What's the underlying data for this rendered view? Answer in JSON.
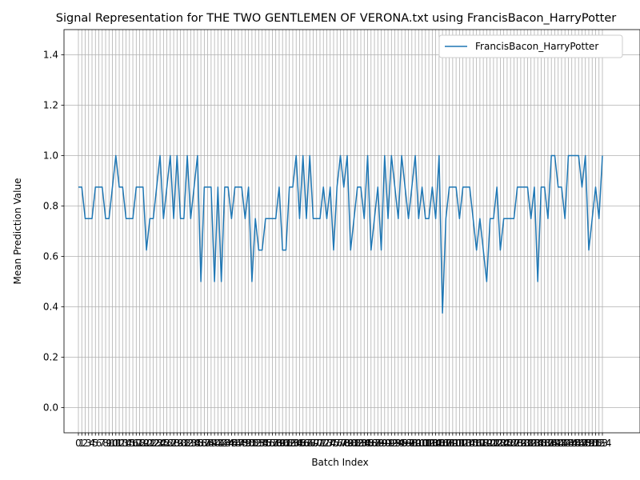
{
  "chart_data": {
    "type": "line",
    "title": "Signal Representation for THE TWO GENTLEMEN OF VERONA.txt using FrancisBacon_HarryPotter",
    "xlabel": "Batch Index",
    "ylabel": "Mean Prediction Value",
    "ylim": [
      -0.1,
      1.5
    ],
    "yticks": [
      0.0,
      0.2,
      0.4,
      0.6,
      0.8,
      1.0,
      1.2,
      1.4
    ],
    "grid": true,
    "legend_position": "upper right",
    "series": [
      {
        "name": "FrancisBacon_HarryPotter",
        "color": "#1f77b4",
        "values": [
          0.875,
          0.875,
          0.75,
          0.75,
          0.75,
          0.875,
          0.875,
          0.875,
          0.75,
          0.75,
          0.875,
          1.0,
          0.875,
          0.875,
          0.75,
          0.75,
          0.75,
          0.875,
          0.875,
          0.875,
          0.625,
          0.75,
          0.75,
          0.875,
          1.0,
          0.75,
          0.875,
          1.0,
          0.75,
          1.0,
          0.75,
          0.75,
          1.0,
          0.75,
          0.875,
          1.0,
          0.5,
          0.875,
          0.875,
          0.875,
          0.5,
          0.875,
          0.5,
          0.875,
          0.875,
          0.75,
          0.875,
          0.875,
          0.875,
          0.75,
          0.875,
          0.5,
          0.75,
          0.625,
          0.625,
          0.75,
          0.75,
          0.75,
          0.75,
          0.875,
          0.625,
          0.625,
          0.875,
          0.875,
          1.0,
          0.75,
          1.0,
          0.75,
          1.0,
          0.75,
          0.75,
          0.75,
          0.875,
          0.75,
          0.875,
          0.625,
          0.875,
          1.0,
          0.875,
          1.0,
          0.625,
          0.75,
          0.875,
          0.875,
          0.75,
          1.0,
          0.625,
          0.75,
          0.875,
          0.625,
          1.0,
          0.75,
          1.0,
          0.875,
          0.75,
          1.0,
          0.875,
          0.75,
          0.875,
          1.0,
          0.75,
          0.875,
          0.75,
          0.75,
          0.875,
          0.75,
          1.0,
          0.375,
          0.75,
          0.875,
          0.875,
          0.875,
          0.75,
          0.875,
          0.875,
          0.875,
          0.75,
          0.625,
          0.75,
          0.625,
          0.5,
          0.75,
          0.75,
          0.875,
          0.625,
          0.75,
          0.75,
          0.75,
          0.75,
          0.875,
          0.875,
          0.875,
          0.875,
          0.75,
          0.875,
          0.5,
          0.875,
          0.875,
          0.75,
          1.0,
          1.0,
          0.875,
          0.875,
          0.75,
          1.0,
          1.0,
          1.0,
          1.0,
          0.875,
          1.0,
          0.625,
          0.75,
          0.875,
          0.75,
          1.0
        ]
      }
    ]
  }
}
